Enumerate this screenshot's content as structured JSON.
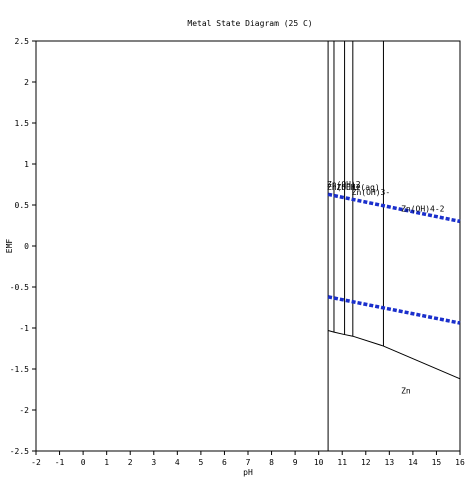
{
  "chart_data": {
    "type": "line",
    "title": "Metal State Diagram (25 C)",
    "xlabel": "pH",
    "ylabel": "EMF",
    "xlim": [
      -2,
      16
    ],
    "ylim": [
      -2.5,
      2.5
    ],
    "xticks": [
      "-2",
      "-1",
      "0",
      "1",
      "2",
      "3",
      "4",
      "5",
      "6",
      "7",
      "8",
      "9",
      "10",
      "11",
      "12",
      "13",
      "14",
      "15",
      "16"
    ],
    "yticks": [
      "2.5",
      "2",
      "1.5",
      "1",
      "0.5",
      "0",
      "-0.5",
      "-1",
      "-1.5",
      "-2",
      "-2.5"
    ],
    "grid": false,
    "colors": {
      "boundary": "#000000",
      "water_lines": "#1a2fcc"
    },
    "water_lines": [
      {
        "x": [
          10.4,
          16
        ],
        "y": [
          0.63,
          0.3
        ]
      },
      {
        "x": [
          10.4,
          16
        ],
        "y": [
          -0.62,
          -0.94
        ]
      }
    ],
    "boundaries": [
      {
        "x": [
          10.4,
          10.4
        ],
        "y": [
          2.5,
          -2.5
        ]
      },
      {
        "x": [
          10.65,
          10.65
        ],
        "y": [
          2.5,
          -1.05
        ]
      },
      {
        "x": [
          11.1,
          11.1
        ],
        "y": [
          2.5,
          -1.08
        ]
      },
      {
        "x": [
          11.45,
          11.45
        ],
        "y": [
          2.5,
          -1.1
        ]
      },
      {
        "x": [
          12.75,
          12.75
        ],
        "y": [
          2.5,
          -1.22
        ]
      },
      {
        "x": [
          10.4,
          10.65,
          11.1,
          11.45,
          12.75,
          16
        ],
        "y": [
          -1.03,
          -1.05,
          -1.08,
          -1.1,
          -1.22,
          -1.62
        ]
      }
    ],
    "annotations": [
      {
        "text": "Zn(OH)2",
        "x": 10.35,
        "y": 0.72
      },
      {
        "text": "Zn(OH)2",
        "x": 10.35,
        "y": 0.68
      },
      {
        "text": "ZnOH+(aq)",
        "x": 10.75,
        "y": 0.68
      },
      {
        "text": "Zn(OH)3-",
        "x": 11.4,
        "y": 0.62
      },
      {
        "text": "Zn(OH)4-2",
        "x": 13.5,
        "y": 0.42
      },
      {
        "text": "Zn",
        "x": 13.5,
        "y": -1.8
      }
    ]
  }
}
